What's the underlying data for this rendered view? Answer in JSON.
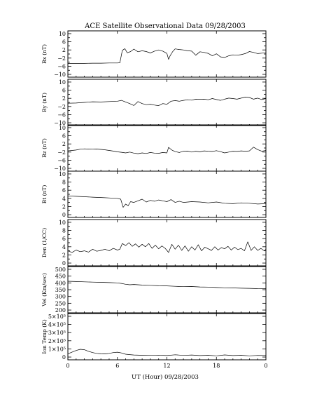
{
  "chart_data": {
    "type": "line",
    "title": "ACE Satellite Observational Data   09/28/2003",
    "xlabel": "UT (Hour)  09/28/2003",
    "x_tick_labels": [
      "0",
      "6",
      "12",
      "18",
      "0"
    ],
    "x_tick_hours": [
      0,
      6,
      12,
      18,
      24
    ],
    "xlim": [
      0,
      24
    ],
    "panels": [
      {
        "ylabel": "Bx (nT)",
        "ylim": [
          -10,
          10
        ],
        "ytick_values": [
          -10,
          -8,
          -6,
          -4,
          -2,
          0,
          2,
          4,
          6,
          8,
          10
        ],
        "ytick_labels": [
          "−10",
          "",
          "−6",
          "",
          "−2",
          "",
          "2",
          "",
          "6",
          "",
          "10"
        ],
        "series": [
          {
            "x": [
              0,
              1,
              2,
              3,
              4,
              5,
              6,
              6.3,
              6.6,
              6.9,
              7.2,
              7.6,
              8,
              8.5,
              9,
              9.5,
              10,
              10.5,
              11,
              11.5,
              12,
              12.2,
              12.4,
              12.7,
              13,
              13.5,
              14,
              14.5,
              15,
              15.5,
              16,
              16.5,
              17,
              17.5,
              18,
              18.5,
              19,
              19.5,
              20,
              20.5,
              21,
              21.5,
              22,
              22.5,
              23,
              23.5,
              24
            ],
            "y": [
              -4.6,
              -4.6,
              -4.6,
              -4.5,
              -4.5,
              -4.4,
              -4.4,
              -4.3,
              1.8,
              2.6,
              0.6,
              1.2,
              2.4,
              1.1,
              1.6,
              1.2,
              0.5,
              1.4,
              2.0,
              1.4,
              0.3,
              -2.6,
              -0.8,
              1.2,
              2.5,
              2.2,
              2.0,
              1.6,
              1.4,
              -0.6,
              1.1,
              0.8,
              0.3,
              -0.9,
              0.1,
              -1.4,
              -1.7,
              -0.9,
              -0.4,
              -0.6,
              -0.3,
              0.2,
              1.2,
              0.8,
              0.2,
              0.4,
              0.6
            ]
          }
        ]
      },
      {
        "ylabel": "By (nT)",
        "ylim": [
          -10,
          10
        ],
        "ytick_values": [
          -10,
          -8,
          -6,
          -4,
          -2,
          0,
          2,
          4,
          6,
          8,
          10
        ],
        "ytick_labels": [
          "−10",
          "",
          "−6",
          "",
          "−2",
          "",
          "2",
          "",
          "6",
          "",
          "10"
        ],
        "series": [
          {
            "x": [
              0,
              1,
              2,
              3,
              4,
              5,
              6,
              6.5,
              7,
              7.5,
              8,
              8.5,
              9,
              9.5,
              10,
              10.5,
              11,
              11.5,
              12,
              12.5,
              13,
              13.5,
              14,
              14.5,
              15,
              15.5,
              16,
              16.5,
              17,
              17.5,
              18,
              18.5,
              19,
              19.5,
              20,
              20.5,
              21,
              21.5,
              22,
              22.5,
              23,
              23.5,
              24
            ],
            "y": [
              -0.4,
              -0.3,
              0.0,
              0.3,
              0.2,
              0.4,
              0.6,
              1.0,
              0.2,
              -0.6,
              -1.5,
              0.4,
              -0.6,
              -1.1,
              -0.9,
              -1.3,
              -1.6,
              -0.6,
              -0.9,
              0.6,
              0.9,
              0.6,
              1.0,
              1.3,
              1.1,
              1.6,
              1.5,
              1.6,
              1.3,
              1.9,
              1.4,
              1.0,
              1.6,
              2.1,
              1.9,
              1.6,
              2.1,
              2.6,
              2.4,
              1.6,
              2.1,
              1.4,
              1.9
            ]
          }
        ]
      },
      {
        "ylabel": "Bz (nT)",
        "ylim": [
          -10,
          10
        ],
        "ytick_values": [
          -10,
          -8,
          -6,
          -4,
          -2,
          0,
          2,
          4,
          6,
          8,
          10
        ],
        "ytick_labels": [
          "−10",
          "",
          "−6",
          "",
          "−2",
          "",
          "2",
          "",
          "6",
          "",
          "10"
        ],
        "series": [
          {
            "x": [
              0,
              0.5,
              1,
              1.5,
              2,
              2.5,
              3,
              3.5,
              4,
              4.5,
              5,
              5.5,
              6,
              6.5,
              7,
              7.5,
              8,
              8.5,
              9,
              9.5,
              10,
              10.5,
              11,
              11.5,
              12,
              12.2,
              12.6,
              13,
              13.5,
              14,
              14.5,
              15,
              15.5,
              16,
              16.5,
              17,
              17.5,
              18,
              18.5,
              19,
              19.5,
              20,
              20.5,
              21,
              21.5,
              22,
              22.5,
              23,
              23.5,
              24
            ],
            "y": [
              -1.4,
              -1.2,
              -1.0,
              -0.6,
              -0.4,
              -0.5,
              -0.6,
              -0.5,
              -0.7,
              -0.9,
              -1.2,
              -1.5,
              -1.9,
              -2.1,
              -2.4,
              -2.0,
              -2.5,
              -2.8,
              -2.4,
              -2.7,
              -2.2,
              -2.5,
              -2.6,
              -2.2,
              -2.4,
              0.3,
              -1.0,
              -1.8,
              -2.2,
              -1.6,
              -1.5,
              -2.0,
              -1.6,
              -1.9,
              -1.4,
              -1.6,
              -1.7,
              -1.3,
              -1.8,
              -2.4,
              -2.0,
              -1.6,
              -1.7,
              -1.4,
              -1.6,
              -1.4,
              0.4,
              -0.8,
              -1.6,
              -1.2
            ]
          }
        ]
      },
      {
        "ylabel": "Bt (nT)",
        "ylim": [
          0,
          10
        ],
        "ytick_values": [
          0,
          1,
          2,
          3,
          4,
          5,
          6,
          7,
          8,
          9,
          10
        ],
        "ytick_labels": [
          "0",
          "",
          "2",
          "",
          "4",
          "",
          "6",
          "",
          "8",
          "",
          "10"
        ],
        "series": [
          {
            "x": [
              0,
              1,
              2,
              3,
              4,
              5,
              6,
              6.4,
              6.7,
              7,
              7.3,
              7.6,
              8,
              8.5,
              9,
              9.5,
              10,
              10.5,
              11,
              11.5,
              12,
              12.5,
              13,
              13.5,
              14,
              15,
              16,
              17,
              18,
              19,
              20,
              21,
              22,
              23,
              24
            ],
            "y": [
              4.6,
              4.5,
              4.4,
              4.3,
              4.2,
              4.1,
              4.0,
              3.8,
              1.8,
              2.6,
              2.2,
              3.2,
              3.0,
              3.4,
              3.8,
              3.1,
              3.5,
              3.3,
              3.6,
              3.4,
              3.2,
              3.7,
              3.0,
              3.3,
              3.0,
              3.2,
              3.1,
              2.9,
              3.1,
              2.8,
              2.7,
              2.9,
              2.8,
              2.6,
              2.7
            ]
          }
        ]
      },
      {
        "ylabel": "Den (1/CC)",
        "ylim": [
          0,
          10
        ],
        "ytick_values": [
          0,
          1,
          2,
          3,
          4,
          5,
          6,
          7,
          8,
          9,
          10
        ],
        "ytick_labels": [
          "0",
          "",
          "2",
          "",
          "4",
          "",
          "6",
          "",
          "8",
          "",
          "10"
        ],
        "series": [
          {
            "x": [
              0,
              0.5,
              1,
              1.5,
              2,
              2.5,
              3,
              3.5,
              4,
              4.5,
              5,
              5.5,
              6,
              6.3,
              6.6,
              7,
              7.4,
              7.8,
              8.2,
              8.6,
              9,
              9.4,
              9.8,
              10.2,
              10.6,
              11,
              11.4,
              11.8,
              12.2,
              12.6,
              13,
              13.4,
              13.8,
              14.2,
              14.6,
              15,
              15.4,
              15.8,
              16.2,
              16.6,
              17,
              17.4,
              17.8,
              18.2,
              18.6,
              19,
              19.4,
              19.8,
              20.2,
              20.6,
              21,
              21.4,
              21.8,
              22.2,
              22.6,
              23,
              23.4,
              23.8,
              24
            ],
            "y": [
              3.0,
              2.6,
              3.2,
              2.8,
              3.0,
              2.7,
              3.4,
              2.9,
              3.1,
              3.4,
              3.0,
              3.6,
              3.2,
              3.4,
              4.8,
              4.3,
              5.0,
              4.1,
              4.7,
              3.9,
              4.6,
              4.0,
              4.8,
              3.6,
              4.4,
              3.5,
              4.2,
              3.6,
              2.6,
              4.6,
              3.4,
              4.4,
              3.1,
              4.2,
              2.9,
              4.0,
              3.2,
              4.5,
              3.0,
              3.9,
              3.5,
              3.1,
              4.0,
              3.2,
              3.8,
              3.5,
              4.1,
              3.2,
              3.9,
              3.3,
              3.6,
              3.0,
              5.2,
              3.1,
              4.0,
              3.1,
              3.6,
              3.0,
              3.4
            ]
          }
        ]
      },
      {
        "ylabel": "Vel (Km/sec)",
        "ylim": [
          200,
          500
        ],
        "ytick_values": [
          200,
          250,
          300,
          350,
          400,
          450,
          500
        ],
        "ytick_labels": [
          "200",
          "250",
          "300",
          "350",
          "400",
          "450",
          "500"
        ],
        "series": [
          {
            "x": [
              0,
              1,
              2,
              3,
              4,
              5,
              6,
              6.5,
              7,
              7.5,
              8,
              9,
              10,
              11,
              12,
              13,
              14,
              15,
              16,
              17,
              18,
              19,
              20,
              21,
              22,
              23,
              24
            ],
            "y": [
              412,
              410,
              408,
              406,
              404,
              402,
              400,
              396,
              390,
              386,
              388,
              384,
              382,
              379,
              378,
              375,
              372,
              373,
              370,
              369,
              366,
              364,
              363,
              361,
              360,
              358,
              357
            ]
          }
        ]
      },
      {
        "ylabel": "Ion Temp (K)",
        "ylim": [
          0,
          500000
        ],
        "ytick_values": [
          0,
          100000,
          200000,
          300000,
          400000,
          500000
        ],
        "ytick_labels": [
          "0",
          "1×10⁵",
          "2×10⁵",
          "3×10⁵",
          "4×10⁵",
          "5×10⁵"
        ],
        "series": [
          {
            "x": [
              0,
              0.5,
              1,
              1.5,
              2,
              2.5,
              3,
              3.5,
              4,
              4.5,
              5,
              5.5,
              6,
              6.5,
              7,
              7.5,
              8,
              9,
              10,
              11,
              12,
              13,
              14,
              15,
              16,
              17,
              18,
              19,
              20,
              21,
              22,
              23,
              24
            ],
            "y": [
              40000,
              60000,
              80000,
              95000,
              90000,
              70000,
              55000,
              45000,
              40000,
              38000,
              45000,
              55000,
              60000,
              50000,
              35000,
              30000,
              25000,
              22000,
              20000,
              24000,
              18000,
              28000,
              20000,
              25000,
              18000,
              22000,
              15000,
              26000,
              18000,
              22000,
              15000,
              20000,
              18000
            ]
          }
        ]
      }
    ]
  }
}
